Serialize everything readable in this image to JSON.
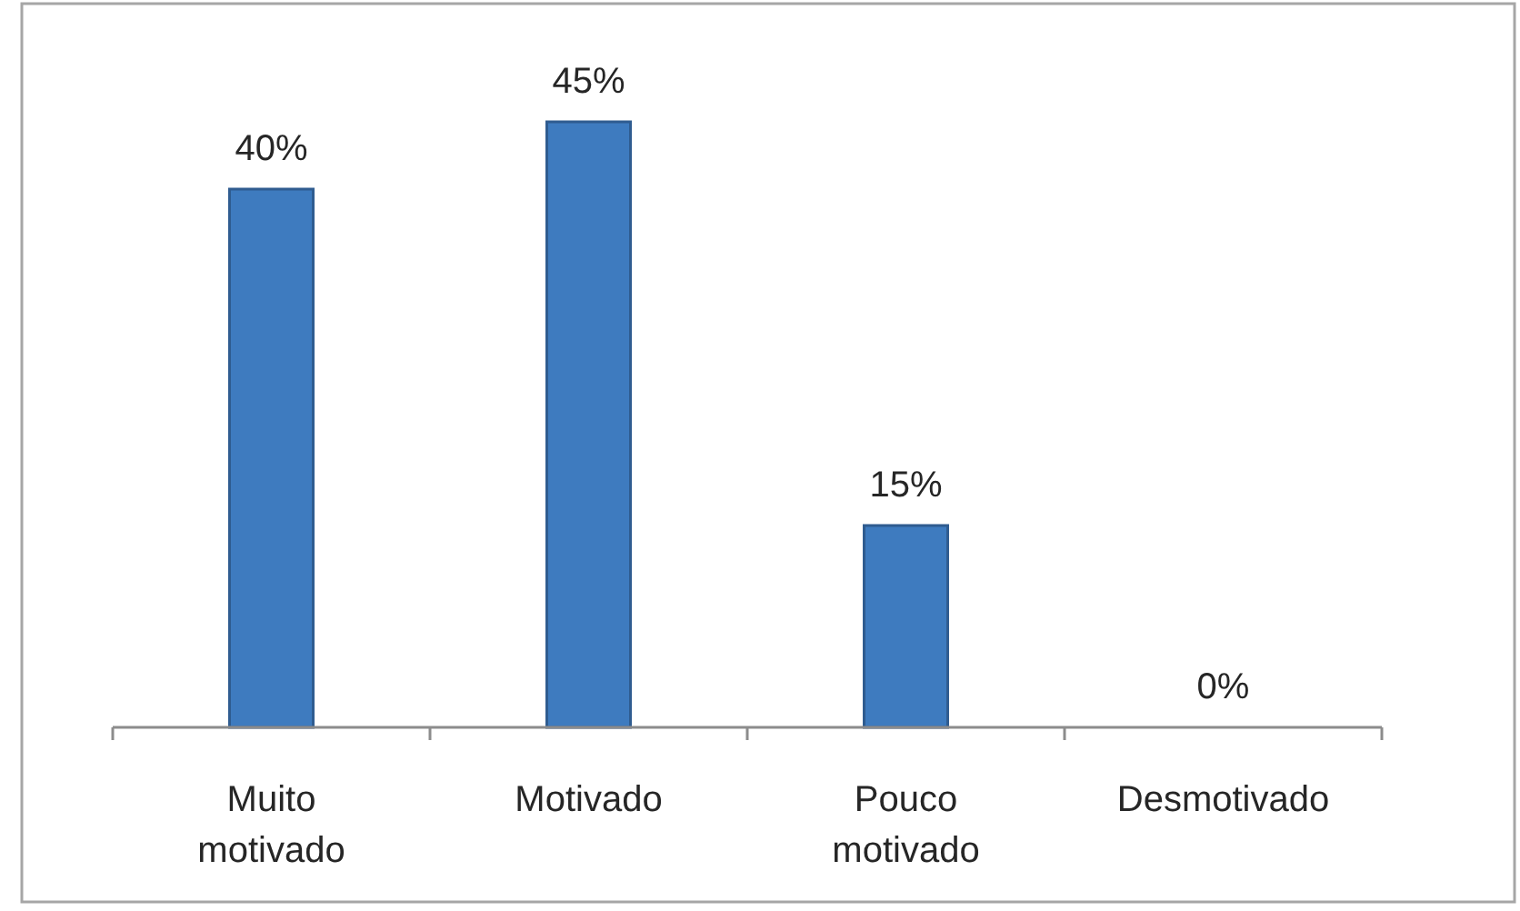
{
  "chart_data": {
    "type": "bar",
    "categories": [
      "Muito motivado",
      "Motivado",
      "Pouco motivado",
      "Desmotivado"
    ],
    "values": [
      40,
      45,
      15,
      0
    ],
    "value_labels": [
      "40%",
      "45%",
      "15%",
      "0%"
    ],
    "color": "#3e7bbf"
  }
}
